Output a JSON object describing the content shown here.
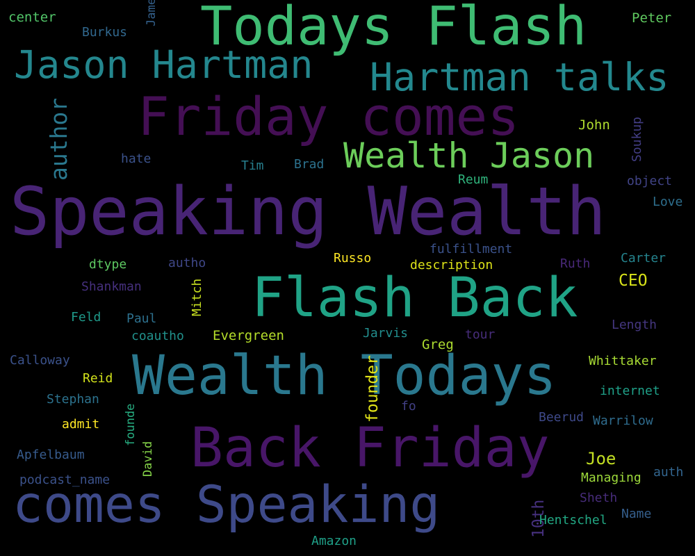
{
  "words": [
    {
      "text": "Speaking Wealth",
      "color": "#482475",
      "orientation": "horizontal"
    },
    {
      "text": "Todays Flash",
      "color": "#3fbc73",
      "orientation": "horizontal"
    },
    {
      "text": "Flash Back",
      "color": "#20a386",
      "orientation": "horizontal"
    },
    {
      "text": "Wealth Todays",
      "color": "#2a788e",
      "orientation": "horizontal"
    },
    {
      "text": "Back Friday",
      "color": "#481668",
      "orientation": "horizontal"
    },
    {
      "text": "comes Speaking",
      "color": "#3e4a89",
      "orientation": "horizontal"
    },
    {
      "text": "Friday comes",
      "color": "#440f54",
      "orientation": "horizontal"
    },
    {
      "text": "Jason Hartman",
      "color": "#24878e",
      "orientation": "horizontal"
    },
    {
      "text": "Hartman talks",
      "color": "#23888e",
      "orientation": "horizontal"
    },
    {
      "text": "Wealth Jason",
      "color": "#6ccd5a",
      "orientation": "horizontal"
    },
    {
      "text": "author",
      "color": "#2a788e",
      "orientation": "vertical"
    },
    {
      "text": "center",
      "color": "#52c569",
      "orientation": "horizontal"
    },
    {
      "text": "Burkus",
      "color": "#31688e",
      "orientation": "horizontal"
    },
    {
      "text": "James",
      "color": "#34618d",
      "orientation": "vertical"
    },
    {
      "text": "Peter",
      "color": "#60ca60",
      "orientation": "horizontal"
    },
    {
      "text": "John",
      "color": "#b0dd2f",
      "orientation": "horizontal"
    },
    {
      "text": "Soukup",
      "color": "#433e85",
      "orientation": "vertical"
    },
    {
      "text": "hate",
      "color": "#3b528b",
      "orientation": "horizontal"
    },
    {
      "text": "Tim",
      "color": "#277f8e",
      "orientation": "horizontal"
    },
    {
      "text": "Brad",
      "color": "#2c728e",
      "orientation": "horizontal"
    },
    {
      "text": "Reum",
      "color": "#2fb47c",
      "orientation": "horizontal"
    },
    {
      "text": "object",
      "color": "#414487",
      "orientation": "horizontal"
    },
    {
      "text": "Love",
      "color": "#2e6f8e",
      "orientation": "horizontal"
    },
    {
      "text": "fulfillment",
      "color": "#3b528b",
      "orientation": "horizontal"
    },
    {
      "text": "dtype",
      "color": "#5ec962",
      "orientation": "horizontal"
    },
    {
      "text": "autho",
      "color": "#3f4788",
      "orientation": "horizontal"
    },
    {
      "text": "Russo",
      "color": "#fde725",
      "orientation": "horizontal"
    },
    {
      "text": "description",
      "color": "#dde318",
      "orientation": "horizontal"
    },
    {
      "text": "Ruth",
      "color": "#482878",
      "orientation": "horizontal"
    },
    {
      "text": "Carter",
      "color": "#25848e",
      "orientation": "horizontal"
    },
    {
      "text": "Shankman",
      "color": "#46307e",
      "orientation": "horizontal"
    },
    {
      "text": "Mitch",
      "color": "#c8e020",
      "orientation": "vertical"
    },
    {
      "text": "CEO",
      "color": "#d8e219",
      "orientation": "horizontal"
    },
    {
      "text": "Feld",
      "color": "#1f9a8a",
      "orientation": "horizontal"
    },
    {
      "text": "Paul",
      "color": "#2d708e",
      "orientation": "horizontal"
    },
    {
      "text": "coautho",
      "color": "#21918c",
      "orientation": "horizontal"
    },
    {
      "text": "Evergreen",
      "color": "#b5de2b",
      "orientation": "horizontal"
    },
    {
      "text": "Jarvis",
      "color": "#228d8d",
      "orientation": "horizontal"
    },
    {
      "text": "Greg",
      "color": "#addc30",
      "orientation": "horizontal"
    },
    {
      "text": "tour",
      "color": "#472d7b",
      "orientation": "horizontal"
    },
    {
      "text": "Length",
      "color": "#453781",
      "orientation": "horizontal"
    },
    {
      "text": "Calloway",
      "color": "#3b528b",
      "orientation": "horizontal"
    },
    {
      "text": "founder",
      "color": "#e2e418",
      "orientation": "vertical"
    },
    {
      "text": "Whittaker",
      "color": "#a8db34",
      "orientation": "horizontal"
    },
    {
      "text": "Reid",
      "color": "#d2e21b",
      "orientation": "horizontal"
    },
    {
      "text": "Stephan",
      "color": "#2c728e",
      "orientation": "horizontal"
    },
    {
      "text": "internet",
      "color": "#1fa088",
      "orientation": "horizontal"
    },
    {
      "text": "founde",
      "color": "#27ad81",
      "orientation": "vertical"
    },
    {
      "text": "fo",
      "color": "#424086",
      "orientation": "horizontal"
    },
    {
      "text": "admit",
      "color": "#fde725",
      "orientation": "horizontal"
    },
    {
      "text": "Beerud",
      "color": "#3e4989",
      "orientation": "horizontal"
    },
    {
      "text": "Warrilow",
      "color": "#2f6c8e",
      "orientation": "horizontal"
    },
    {
      "text": "Apfelbaum",
      "color": "#375b8d",
      "orientation": "horizontal"
    },
    {
      "text": "David",
      "color": "#86d549",
      "orientation": "vertical"
    },
    {
      "text": "Joe",
      "color": "#c2df23",
      "orientation": "horizontal"
    },
    {
      "text": "podcast_name",
      "color": "#3b528b",
      "orientation": "horizontal"
    },
    {
      "text": "Managing",
      "color": "#9dd93b",
      "orientation": "horizontal"
    },
    {
      "text": "auth",
      "color": "#32658e",
      "orientation": "horizontal"
    },
    {
      "text": "10th",
      "color": "#46307e",
      "orientation": "vertical"
    },
    {
      "text": "Sheth",
      "color": "#472c7a",
      "orientation": "horizontal"
    },
    {
      "text": "Hentschel",
      "color": "#22a884",
      "orientation": "horizontal"
    },
    {
      "text": "Name",
      "color": "#355f8d",
      "orientation": "horizontal"
    },
    {
      "text": "Amazon",
      "color": "#1fa088",
      "orientation": "horizontal"
    }
  ]
}
